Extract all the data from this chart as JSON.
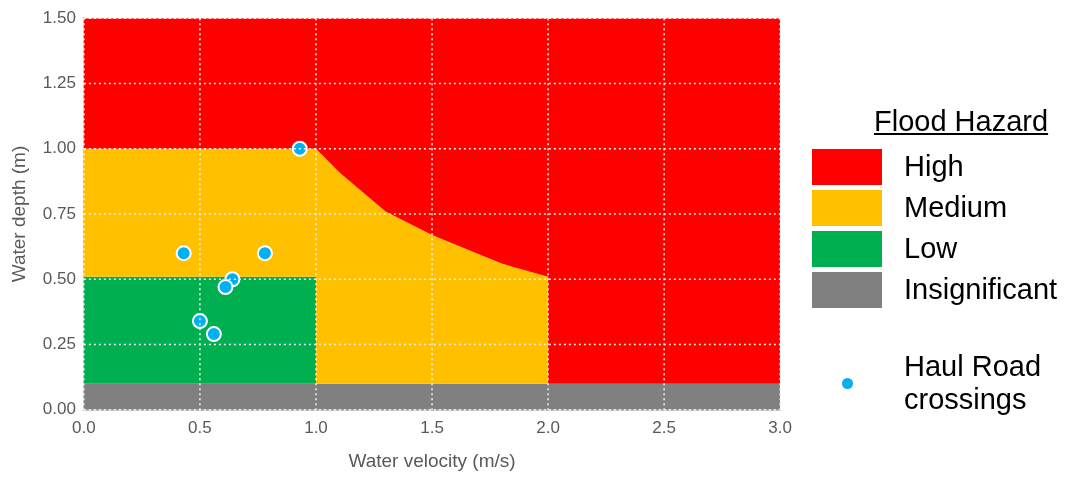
{
  "chart_data": {
    "type": "area",
    "stacked": true,
    "xlabel": "Water velocity (m/s)",
    "ylabel": "Water depth (m)",
    "legend_title": "Flood Hazard",
    "x": [
      0,
      1.0,
      1.0,
      1.1,
      1.3,
      1.5,
      1.8,
      2.0,
      2.0,
      3.0
    ],
    "series": [
      {
        "name": "Insignificant",
        "color": "#808080",
        "values": [
          0.1,
          0.1,
          0.1,
          0.1,
          0.1,
          0.1,
          0.1,
          0.1,
          0.1,
          0.1
        ]
      },
      {
        "name": "Low",
        "color": "#00b050",
        "values": [
          0.41,
          0.41,
          0,
          0,
          0,
          0,
          0,
          0,
          0,
          0
        ]
      },
      {
        "name": "Medium",
        "color": "#ffc000",
        "values": [
          0.49,
          0.49,
          0.9,
          0.81,
          0.66,
          0.57,
          0.46,
          0.41,
          0,
          0
        ]
      },
      {
        "name": "High",
        "color": "#ff0000",
        "values": [
          0.5,
          0.5,
          0.5,
          0.59,
          0.74,
          0.83,
          0.94,
          0.99,
          1.4,
          1.4
        ]
      },
      {
        "name": "Haul Road crossings",
        "type": "scatter",
        "color": "#00b0f0",
        "marker": "circle",
        "x": [
          0.93,
          0.43,
          0.78,
          0.64,
          0.61,
          0.5,
          0.56
        ],
        "values": [
          1.0,
          0.6,
          0.6,
          0.5,
          0.47,
          0.34,
          0.29
        ]
      }
    ],
    "xlim": [
      0,
      3
    ],
    "xticks": [
      {
        "value": 0,
        "label": "0.0"
      },
      {
        "value": 0.5,
        "label": "0.5"
      },
      {
        "value": 1,
        "label": "1.0"
      },
      {
        "value": 1.5,
        "label": "1.5"
      },
      {
        "value": 2,
        "label": "2.0"
      },
      {
        "value": 2.5,
        "label": "2.5"
      },
      {
        "value": 3,
        "label": "3.0"
      }
    ],
    "ylim": [
      0,
      1.5
    ],
    "yticks": [
      {
        "value": 0,
        "label": "0.00"
      },
      {
        "value": 0.25,
        "label": "0.25"
      },
      {
        "value": 0.5,
        "label": "0.50"
      },
      {
        "value": 0.75,
        "label": "0.75"
      },
      {
        "value": 1,
        "label": "1.00"
      },
      {
        "value": 1.25,
        "label": "1.25"
      },
      {
        "value": 1.5,
        "label": "1.50"
      }
    ],
    "grid": true,
    "legend": "right"
  }
}
